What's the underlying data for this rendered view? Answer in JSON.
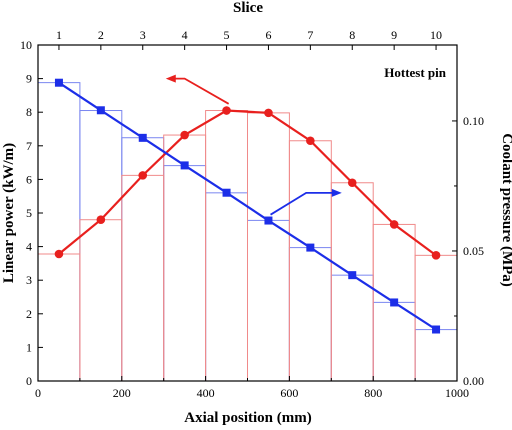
{
  "chart_data": {
    "type": "line",
    "annotation": "Hottest pin",
    "x_axis": {
      "label": "Axial position (mm)",
      "range": [
        0,
        1000
      ],
      "ticks": [
        0,
        200,
        400,
        600,
        800,
        1000
      ]
    },
    "top_axis": {
      "label": "Slice",
      "ticks": [
        1,
        2,
        3,
        4,
        5,
        6,
        7,
        8,
        9,
        10
      ],
      "tick_positions_mm": [
        50,
        150,
        250,
        350,
        450,
        550,
        650,
        750,
        850,
        950
      ]
    },
    "y_left": {
      "label": "Linear power (kW/m)",
      "range": [
        0,
        10
      ],
      "ticks": [
        0,
        1,
        2,
        3,
        4,
        5,
        6,
        7,
        8,
        9,
        10
      ]
    },
    "y_right": {
      "label": "Coolant pressure (MPa)",
      "range": [
        0.0,
        0.1292
      ],
      "ticks": [
        0.0,
        0.05,
        0.1
      ],
      "tick_labels": [
        "0.00",
        "0.05",
        "0.10"
      ]
    },
    "series": [
      {
        "axis": "left",
        "color": "#e8201e",
        "marker": "circle",
        "x": [
          50,
          150,
          250,
          350,
          450,
          550,
          650,
          750,
          850,
          950
        ],
        "y": [
          3.78,
          4.8,
          6.12,
          7.32,
          8.05,
          7.98,
          7.15,
          5.9,
          4.66,
          3.74
        ],
        "steps": [
          3.78,
          4.8,
          6.12,
          7.32,
          8.05,
          7.98,
          7.15,
          5.9,
          4.66,
          3.74
        ]
      },
      {
        "axis": "right",
        "color": "#1c2ee8",
        "marker": "square",
        "x": [
          50,
          150,
          250,
          350,
          450,
          550,
          650,
          750,
          850,
          950
        ],
        "y": [
          0.1147,
          0.1041,
          0.0935,
          0.0829,
          0.0724,
          0.0617,
          0.0513,
          0.0407,
          0.0302,
          0.0198
        ],
        "steps_left_units": [
          8.88,
          8.05,
          7.24,
          6.41,
          5.6,
          4.78,
          3.97,
          3.15,
          2.34,
          1.53
        ]
      }
    ],
    "arrows": [
      {
        "series": 0,
        "direction": "left",
        "from": [
          350,
          9.0
        ],
        "to": [
          305,
          9.0
        ]
      },
      {
        "series": 1,
        "direction": "right",
        "from": [
          640,
          5.6
        ],
        "to": [
          725,
          5.6
        ]
      }
    ]
  }
}
